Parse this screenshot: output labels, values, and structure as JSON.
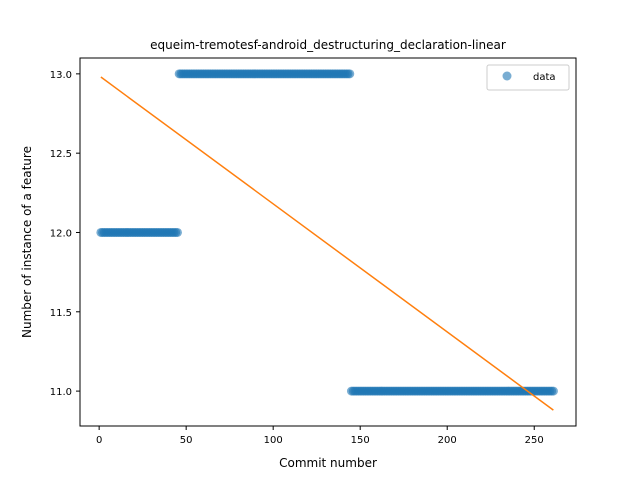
{
  "chart_data": {
    "type": "scatter",
    "title": "equeim-tremotesf-android_destructuring_declaration-linear",
    "xlabel": "Commit number",
    "ylabel": "Number of instance of a feature",
    "xlim": [
      -11,
      274
    ],
    "ylim": [
      10.78,
      13.1
    ],
    "xticks": [
      0,
      50,
      100,
      150,
      200,
      250
    ],
    "xtick_labels": [
      "0",
      "50",
      "100",
      "150",
      "200",
      "250"
    ],
    "yticks": [
      11.0,
      11.5,
      12.0,
      12.5,
      13.0
    ],
    "ytick_labels": [
      "11.0",
      "11.5",
      "12.0",
      "12.5",
      "13.0"
    ],
    "grid": false,
    "legend": {
      "position": "top-right",
      "entries": [
        "data"
      ]
    },
    "series": [
      {
        "name": "data",
        "kind": "scatter",
        "color": "#1f77b4",
        "segments": [
          {
            "x_start": 1,
            "x_end": 45,
            "y": 12.0
          },
          {
            "x_start": 46,
            "x_end": 144,
            "y": 13.0
          },
          {
            "x_start": 145,
            "x_end": 261,
            "y": 11.0
          }
        ]
      },
      {
        "kind": "line",
        "color": "#ff7f0e",
        "x": [
          1,
          261
        ],
        "y": [
          12.98,
          10.88
        ]
      }
    ]
  }
}
